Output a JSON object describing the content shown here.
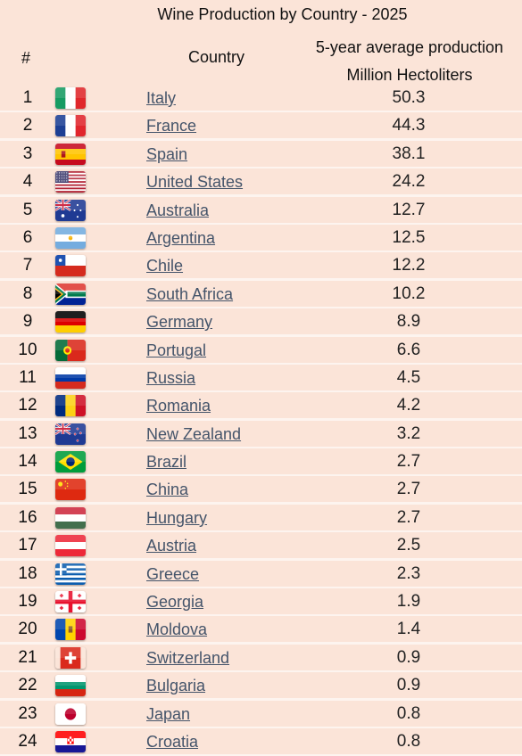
{
  "chart_data": {
    "type": "table",
    "title": "Wine Production by Country - 2025",
    "columns": [
      "#",
      "Country",
      "5-year average production",
      "Million Hectoliters"
    ],
    "rows": [
      {
        "rank": "1",
        "country": "Italy",
        "flag": "italy-flag-icon",
        "value": "50.3"
      },
      {
        "rank": "2",
        "country": "France",
        "flag": "france-flag-icon",
        "value": "44.3"
      },
      {
        "rank": "3",
        "country": "Spain",
        "flag": "spain-flag-icon",
        "value": "38.1"
      },
      {
        "rank": "4",
        "country": "United States",
        "flag": "usa-flag-icon",
        "value": "24.2"
      },
      {
        "rank": "5",
        "country": "Australia",
        "flag": "australia-flag-icon",
        "value": "12.7"
      },
      {
        "rank": "6",
        "country": "Argentina",
        "flag": "argentina-flag-icon",
        "value": "12.5"
      },
      {
        "rank": "7",
        "country": "Chile",
        "flag": "chile-flag-icon",
        "value": "12.2"
      },
      {
        "rank": "8",
        "country": "South Africa",
        "flag": "south-africa-flag-icon",
        "value": "10.2"
      },
      {
        "rank": "9",
        "country": "Germany",
        "flag": "germany-flag-icon",
        "value": "8.9"
      },
      {
        "rank": "10",
        "country": "Portugal",
        "flag": "portugal-flag-icon",
        "value": "6.6"
      },
      {
        "rank": "11",
        "country": "Russia",
        "flag": "russia-flag-icon",
        "value": "4.5"
      },
      {
        "rank": "12",
        "country": "Romania",
        "flag": "romania-flag-icon",
        "value": "4.2"
      },
      {
        "rank": "13",
        "country": "New Zealand",
        "flag": "new-zealand-flag-icon",
        "value": "3.2"
      },
      {
        "rank": "14",
        "country": "Brazil",
        "flag": "brazil-flag-icon",
        "value": "2.7"
      },
      {
        "rank": "15",
        "country": "China",
        "flag": "china-flag-icon",
        "value": "2.7"
      },
      {
        "rank": "16",
        "country": "Hungary",
        "flag": "hungary-flag-icon",
        "value": "2.7"
      },
      {
        "rank": "17",
        "country": "Austria",
        "flag": "austria-flag-icon",
        "value": "2.5"
      },
      {
        "rank": "18",
        "country": "Greece",
        "flag": "greece-flag-icon",
        "value": "2.3"
      },
      {
        "rank": "19",
        "country": "Georgia",
        "flag": "georgia-flag-icon",
        "value": "1.9"
      },
      {
        "rank": "20",
        "country": "Moldova",
        "flag": "moldova-flag-icon",
        "value": "1.4"
      },
      {
        "rank": "21",
        "country": "Switzerland",
        "flag": "switzerland-flag-icon",
        "value": "0.9"
      },
      {
        "rank": "22",
        "country": "Bulgaria",
        "flag": "bulgaria-flag-icon",
        "value": "0.9"
      },
      {
        "rank": "23",
        "country": "Japan",
        "flag": "japan-flag-icon",
        "value": "0.8"
      },
      {
        "rank": "24",
        "country": "Croatia",
        "flag": "croatia-flag-icon",
        "value": "0.8"
      }
    ]
  },
  "colors": {
    "background": "#fbe4d8",
    "link": "#44546a"
  }
}
